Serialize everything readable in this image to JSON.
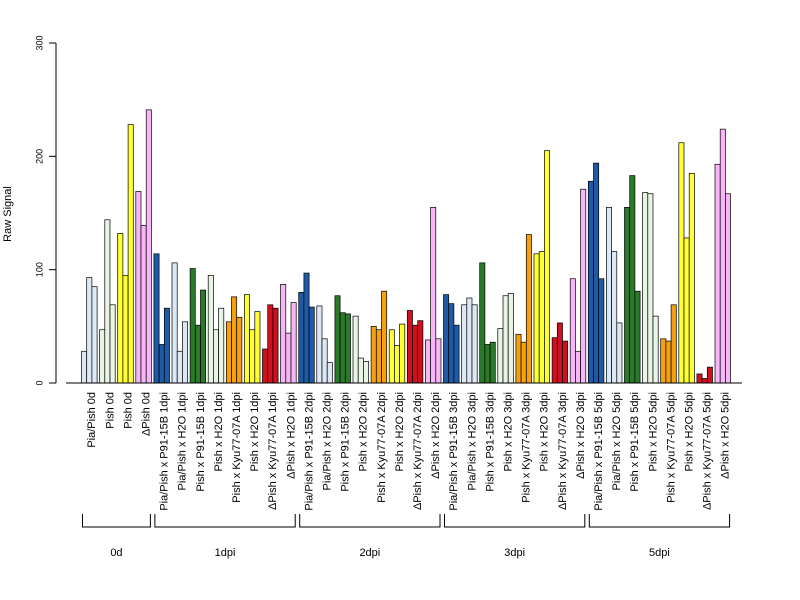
{
  "chart_data": {
    "type": "bar",
    "ylabel": "Raw Signal",
    "ylim": [
      0,
      300
    ],
    "yticks": [
      0,
      100,
      200,
      300
    ],
    "grid": false,
    "legend": "none",
    "groups": [
      {
        "label": "Pia/Pish 0d",
        "values": [
          {
            "v": 28,
            "color": "#dce9f5"
          },
          {
            "v": 93,
            "color": "#dce9f5"
          },
          {
            "v": 85,
            "color": "#dce9f5"
          }
        ]
      },
      {
        "label": "Pish 0d",
        "values": [
          {
            "v": 47,
            "color": "#e8f4e4"
          },
          {
            "v": 144,
            "color": "#e8f4e4"
          },
          {
            "v": 69,
            "color": "#e8f4e4"
          }
        ]
      },
      {
        "label": "Pish 0d",
        "values": [
          {
            "v": 132,
            "color": "#ffff33"
          },
          {
            "v": 95,
            "color": "#ffff33"
          },
          {
            "v": 228,
            "color": "#ffff33"
          }
        ]
      },
      {
        "label": "ΔPish 0d",
        "values": [
          {
            "v": 169,
            "color": "#f7b6f7"
          },
          {
            "v": 139,
            "color": "#f7b6f7"
          },
          {
            "v": 241,
            "color": "#f7b6f7"
          }
        ]
      },
      {
        "label": "Pia/Pish x P91-15B 1dpi",
        "values": [
          {
            "v": 114,
            "color": "#1f5aa6"
          },
          {
            "v": 34,
            "color": "#1f5aa6"
          },
          {
            "v": 66,
            "color": "#1f5aa6"
          }
        ]
      },
      {
        "label": "Pia/Pish x H2O 1dpi",
        "values": [
          {
            "v": 106,
            "color": "#dce9f5"
          },
          {
            "v": 28,
            "color": "#dce9f5"
          },
          {
            "v": 54,
            "color": "#dce9f5"
          }
        ]
      },
      {
        "label": "Pish x P91-15B 1dpi",
        "values": [
          {
            "v": 101,
            "color": "#2a7a2a"
          },
          {
            "v": 51,
            "color": "#2a7a2a"
          },
          {
            "v": 82,
            "color": "#2a7a2a"
          }
        ]
      },
      {
        "label": "Pish x H2O 1dpi",
        "values": [
          {
            "v": 95,
            "color": "#e8f4e4"
          },
          {
            "v": 47,
            "color": "#e8f4e4"
          },
          {
            "v": 66,
            "color": "#e8f4e4"
          }
        ]
      },
      {
        "label": "Pish x Kyu77-07A 1dpi",
        "values": [
          {
            "v": 54,
            "color": "#f5a00f"
          },
          {
            "v": 76,
            "color": "#f5a00f"
          },
          {
            "v": 58,
            "color": "#f5a00f"
          }
        ]
      },
      {
        "label": "Pish x H2O 1dpi",
        "values": [
          {
            "v": 78,
            "color": "#ffff33"
          },
          {
            "v": 47,
            "color": "#ffff33"
          },
          {
            "v": 63,
            "color": "#ffff33"
          }
        ]
      },
      {
        "label": "ΔPish x Kyu77-07A 1dpi",
        "values": [
          {
            "v": 30,
            "color": "#d0101e"
          },
          {
            "v": 69,
            "color": "#d0101e"
          },
          {
            "v": 66,
            "color": "#d0101e"
          }
        ]
      },
      {
        "label": "ΔPish x H2O 1dpi",
        "values": [
          {
            "v": 87,
            "color": "#f7b6f7"
          },
          {
            "v": 44,
            "color": "#f7b6f7"
          },
          {
            "v": 71,
            "color": "#f7b6f7"
          }
        ]
      },
      {
        "label": "Pia/Pish x P91-15B 2dpi",
        "values": [
          {
            "v": 80,
            "color": "#1f5aa6"
          },
          {
            "v": 97,
            "color": "#1f5aa6"
          },
          {
            "v": 67,
            "color": "#1f5aa6"
          }
        ]
      },
      {
        "label": "Pia/Pish x H2O 2dpi",
        "values": [
          {
            "v": 68,
            "color": "#dce9f5"
          },
          {
            "v": 39,
            "color": "#dce9f5"
          },
          {
            "v": 18,
            "color": "#dce9f5"
          }
        ]
      },
      {
        "label": "Pish x P91-15B 2dpi",
        "values": [
          {
            "v": 77,
            "color": "#2a7a2a"
          },
          {
            "v": 62,
            "color": "#2a7a2a"
          },
          {
            "v": 61,
            "color": "#2a7a2a"
          }
        ]
      },
      {
        "label": "Pish x H2O 2dpi",
        "values": [
          {
            "v": 59,
            "color": "#e8f4e4"
          },
          {
            "v": 22,
            "color": "#e8f4e4"
          },
          {
            "v": 19,
            "color": "#e8f4e4"
          }
        ]
      },
      {
        "label": "Pish x Kyu77-07A 2dpi",
        "values": [
          {
            "v": 50,
            "color": "#f5a00f"
          },
          {
            "v": 47,
            "color": "#f5a00f"
          },
          {
            "v": 81,
            "color": "#f5a00f"
          }
        ]
      },
      {
        "label": "Pish x H2O 2dpi",
        "values": [
          {
            "v": 47,
            "color": "#ffff33"
          },
          {
            "v": 33,
            "color": "#ffff33"
          },
          {
            "v": 52,
            "color": "#ffff33"
          }
        ]
      },
      {
        "label": "ΔPish x Kyu77-07A 2dpi",
        "values": [
          {
            "v": 64,
            "color": "#d0101e"
          },
          {
            "v": 51,
            "color": "#d0101e"
          },
          {
            "v": 55,
            "color": "#d0101e"
          }
        ]
      },
      {
        "label": "ΔPish x H2O 2dpi",
        "values": [
          {
            "v": 38,
            "color": "#f7b6f7"
          },
          {
            "v": 155,
            "color": "#f7b6f7"
          },
          {
            "v": 39,
            "color": "#f7b6f7"
          }
        ]
      },
      {
        "label": "Pia/Pish x P91-15B 3dpi",
        "values": [
          {
            "v": 78,
            "color": "#1f5aa6"
          },
          {
            "v": 70,
            "color": "#1f5aa6"
          },
          {
            "v": 51,
            "color": "#1f5aa6"
          }
        ]
      },
      {
        "label": "Pia/Pish x H2O 3dpi",
        "values": [
          {
            "v": 69,
            "color": "#dce9f5"
          },
          {
            "v": 75,
            "color": "#dce9f5"
          },
          {
            "v": 69,
            "color": "#dce9f5"
          }
        ]
      },
      {
        "label": "Pish x P91-15B 3dpi",
        "values": [
          {
            "v": 106,
            "color": "#2a7a2a"
          },
          {
            "v": 34,
            "color": "#2a7a2a"
          },
          {
            "v": 36,
            "color": "#2a7a2a"
          }
        ]
      },
      {
        "label": "Pish x H2O 3dpi",
        "values": [
          {
            "v": 48,
            "color": "#e8f4e4"
          },
          {
            "v": 77,
            "color": "#e8f4e4"
          },
          {
            "v": 79,
            "color": "#e8f4e4"
          }
        ]
      },
      {
        "label": "Pish x Kyu77-07A 3dpi",
        "values": [
          {
            "v": 43,
            "color": "#f5a00f"
          },
          {
            "v": 36,
            "color": "#f5a00f"
          },
          {
            "v": 131,
            "color": "#f5a00f"
          }
        ]
      },
      {
        "label": "Pish x H2O 3dpi",
        "values": [
          {
            "v": 114,
            "color": "#ffff33"
          },
          {
            "v": 116,
            "color": "#ffff33"
          },
          {
            "v": 205,
            "color": "#ffff33"
          }
        ]
      },
      {
        "label": "ΔPish x Kyu77-07A 3dpi",
        "values": [
          {
            "v": 40,
            "color": "#d0101e"
          },
          {
            "v": 53,
            "color": "#d0101e"
          },
          {
            "v": 37,
            "color": "#d0101e"
          }
        ]
      },
      {
        "label": "ΔPish x H2O 3dpi",
        "values": [
          {
            "v": 92,
            "color": "#f7b6f7"
          },
          {
            "v": 28,
            "color": "#f7b6f7"
          },
          {
            "v": 171,
            "color": "#f7b6f7"
          }
        ]
      },
      {
        "label": "Pia/Pish x P91-15B 5dpi",
        "values": [
          {
            "v": 178,
            "color": "#1f5aa6"
          },
          {
            "v": 194,
            "color": "#1f5aa6"
          },
          {
            "v": 92,
            "color": "#1f5aa6"
          }
        ]
      },
      {
        "label": "Pia/Pish x H2O 5dpi",
        "values": [
          {
            "v": 155,
            "color": "#dce9f5"
          },
          {
            "v": 116,
            "color": "#dce9f5"
          },
          {
            "v": 53,
            "color": "#dce9f5"
          }
        ]
      },
      {
        "label": "Pish x P91-15B 5dpi",
        "values": [
          {
            "v": 155,
            "color": "#2a7a2a"
          },
          {
            "v": 183,
            "color": "#2a7a2a"
          },
          {
            "v": 81,
            "color": "#2a7a2a"
          }
        ]
      },
      {
        "label": "Pish x H2O 5dpi",
        "values": [
          {
            "v": 168,
            "color": "#e8f4e4"
          },
          {
            "v": 167,
            "color": "#e8f4e4"
          },
          {
            "v": 59,
            "color": "#e8f4e4"
          }
        ]
      },
      {
        "label": "Pish x Kyu77-07A 5dpi",
        "values": [
          {
            "v": 39,
            "color": "#f5a00f"
          },
          {
            "v": 37,
            "color": "#f5a00f"
          },
          {
            "v": 69,
            "color": "#f5a00f"
          }
        ]
      },
      {
        "label": "Pish x H2O 5dpi",
        "values": [
          {
            "v": 212,
            "color": "#ffff33"
          },
          {
            "v": 128,
            "color": "#ffff33"
          },
          {
            "v": 185,
            "color": "#ffff33"
          }
        ]
      },
      {
        "label": "ΔPish x Kyu77-07A 5dpi",
        "values": [
          {
            "v": 8,
            "color": "#d0101e"
          },
          {
            "v": 4,
            "color": "#d0101e"
          },
          {
            "v": 14,
            "color": "#d0101e"
          }
        ]
      },
      {
        "label": "ΔPish x H2O 5dpi",
        "values": [
          {
            "v": 193,
            "color": "#f7b6f7"
          },
          {
            "v": 224,
            "color": "#f7b6f7"
          },
          {
            "v": 167,
            "color": "#f7b6f7"
          }
        ]
      }
    ],
    "timepoints": [
      {
        "label": "0d",
        "from": 0,
        "to": 3
      },
      {
        "label": "1dpi",
        "from": 4,
        "to": 11
      },
      {
        "label": "2dpi",
        "from": 12,
        "to": 19
      },
      {
        "label": "3dpi",
        "from": 20,
        "to": 27
      },
      {
        "label": "5dpi",
        "from": 28,
        "to": 35
      }
    ]
  }
}
